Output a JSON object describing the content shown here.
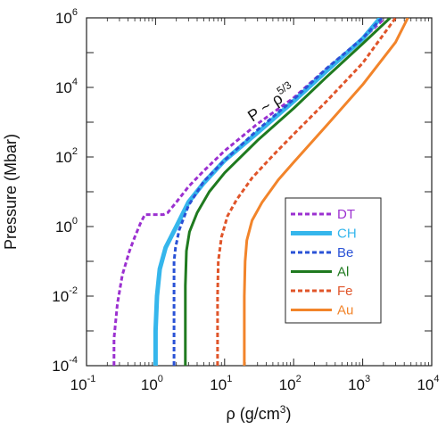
{
  "chart_data": {
    "type": "line",
    "xscale": "log",
    "yscale": "log",
    "xlim": [
      0.1,
      10000
    ],
    "ylim": [
      0.0001,
      1000000
    ],
    "xticks": [
      0.1,
      1,
      10,
      100,
      1000,
      10000
    ],
    "yticks": [
      0.0001,
      0.01,
      1,
      100,
      10000,
      1000000
    ],
    "xtick_labels": [
      {
        "base": "10",
        "exp": "-1"
      },
      {
        "base": "10",
        "exp": "0"
      },
      {
        "base": "10",
        "exp": "1"
      },
      {
        "base": "10",
        "exp": "2"
      },
      {
        "base": "10",
        "exp": "3"
      },
      {
        "base": "10",
        "exp": "4"
      }
    ],
    "ytick_labels": [
      {
        "base": "10",
        "exp": "-4"
      },
      {
        "base": "10",
        "exp": "-2"
      },
      {
        "base": "10",
        "exp": "0"
      },
      {
        "base": "10",
        "exp": "2"
      },
      {
        "base": "10",
        "exp": "4"
      },
      {
        "base": "10",
        "exp": "6"
      }
    ],
    "xlabel": {
      "text": "ρ (g/cm",
      "sup": "3",
      "close": ")"
    },
    "ylabel": "Pressure (Mbar)",
    "annotation": {
      "text": "P ~ ρ",
      "sup": "5/3"
    },
    "legend_position": "lower-right",
    "series": [
      {
        "name": "DT",
        "color": "#9b30d0",
        "style": "dashed",
        "width": 3,
        "points": [
          [
            0.25,
            0.0001
          ],
          [
            0.25,
            0.0006
          ],
          [
            0.28,
            0.006
          ],
          [
            0.33,
            0.04
          ],
          [
            0.42,
            0.2
          ],
          [
            0.5,
            0.5
          ],
          [
            0.6,
            1.2
          ],
          [
            0.7,
            2.2
          ],
          [
            1.0,
            2.2
          ],
          [
            1.3,
            2.2
          ],
          [
            1.5,
            2.5
          ],
          [
            2,
            5
          ],
          [
            3,
            14
          ],
          [
            5,
            40
          ],
          [
            10,
            150
          ],
          [
            30,
            900
          ],
          [
            100,
            5000
          ],
          [
            300,
            35000
          ],
          [
            1000,
            250000
          ],
          [
            2000,
            900000
          ]
        ]
      },
      {
        "name": "CH",
        "color": "#35b6ec",
        "style": "solid",
        "width": 5,
        "points": [
          [
            1.0,
            0.0001
          ],
          [
            1.0,
            0.001
          ],
          [
            1.05,
            0.01
          ],
          [
            1.15,
            0.06
          ],
          [
            1.4,
            0.25
          ],
          [
            2,
            1
          ],
          [
            3,
            5
          ],
          [
            5,
            18
          ],
          [
            10,
            80
          ],
          [
            30,
            500
          ],
          [
            100,
            4000
          ],
          [
            300,
            30000
          ],
          [
            1000,
            250000
          ],
          [
            1800,
            1000000
          ]
        ]
      },
      {
        "name": "Be",
        "color": "#2a52d6",
        "style": "dashed",
        "width": 3,
        "points": [
          [
            1.85,
            0.0001
          ],
          [
            1.85,
            0.1
          ],
          [
            1.95,
            0.25
          ],
          [
            2.2,
            0.8
          ],
          [
            3,
            4
          ],
          [
            5,
            20
          ],
          [
            10,
            80
          ],
          [
            30,
            600
          ],
          [
            100,
            4500
          ],
          [
            300,
            35000
          ],
          [
            1000,
            260000
          ],
          [
            1900,
            1000000
          ]
        ]
      },
      {
        "name": "Al",
        "color": "#1f7a1f",
        "style": "solid",
        "width": 3,
        "points": [
          [
            2.7,
            0.0001
          ],
          [
            2.7,
            0.02
          ],
          [
            2.8,
            0.2
          ],
          [
            3.1,
            0.7
          ],
          [
            4,
            2.5
          ],
          [
            6,
            10
          ],
          [
            10,
            35
          ],
          [
            30,
            300
          ],
          [
            100,
            2500
          ],
          [
            300,
            20000
          ],
          [
            1000,
            180000
          ],
          [
            2500,
            1000000
          ]
        ]
      },
      {
        "name": "Fe",
        "color": "#e0552a",
        "style": "dashed",
        "width": 3,
        "points": [
          [
            7.9,
            0.0001
          ],
          [
            7.9,
            0.01
          ],
          [
            8.1,
            0.1
          ],
          [
            9,
            0.5
          ],
          [
            11,
            2
          ],
          [
            15,
            6
          ],
          [
            25,
            25
          ],
          [
            50,
            110
          ],
          [
            100,
            450
          ],
          [
            300,
            4000
          ],
          [
            1000,
            50000
          ],
          [
            3000,
            1000000
          ]
        ]
      },
      {
        "name": "Au",
        "color": "#f2842a",
        "style": "solid",
        "width": 3,
        "points": [
          [
            19.3,
            0.0001
          ],
          [
            19.3,
            0.01
          ],
          [
            19.8,
            0.1
          ],
          [
            21,
            0.4
          ],
          [
            25,
            1.5
          ],
          [
            35,
            5
          ],
          [
            60,
            22
          ],
          [
            100,
            70
          ],
          [
            300,
            800
          ],
          [
            1000,
            12000
          ],
          [
            3000,
            200000
          ],
          [
            4500,
            1000000
          ]
        ]
      }
    ]
  }
}
